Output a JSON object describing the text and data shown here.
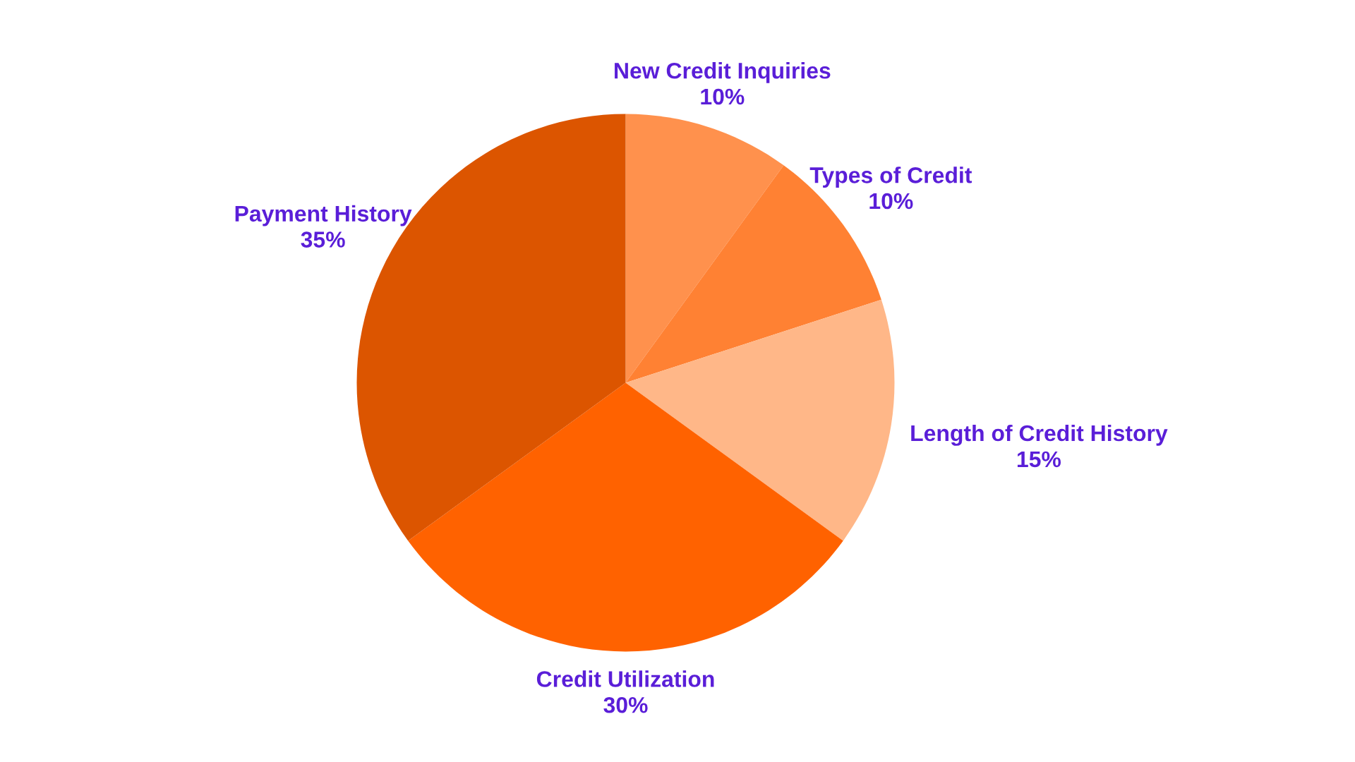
{
  "chart_data": {
    "type": "pie",
    "categories": [
      "New Credit Inquiries",
      "Types of Credit",
      "Length of Credit History",
      "Credit Utilization",
      "Payment History"
    ],
    "values": [
      10,
      10,
      15,
      30,
      35
    ],
    "colors": [
      "#ff914d",
      "#ff8133",
      "#ffb788",
      "#ff6200",
      "#dc5500"
    ],
    "value_labels": [
      "10%",
      "10%",
      "15%",
      "30%",
      "35%"
    ]
  }
}
